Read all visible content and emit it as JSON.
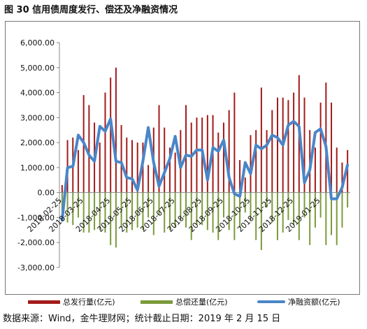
{
  "title": "图 30 信用债周度发行、偿还及净融资情况",
  "source": "数据来源：Wind，金牛理财网；统计截止日期：2019 年 2 月 15 日",
  "legend": {
    "issue": "总发行量(亿元)",
    "repay": "总偿还量(亿元)",
    "net": "净融资额(亿元)"
  },
  "colors": {
    "issue": "#a31a1a",
    "repay": "#7a9a3a",
    "net": "#4a86c8"
  },
  "chart_data": {
    "type": "bar",
    "ylim": [
      -3000,
      6000
    ],
    "yticks": [
      6000,
      5000,
      4000,
      3000,
      2000,
      1000,
      0,
      -1000,
      -2000,
      -3000
    ],
    "ytick_labels": [
      "6,000.00",
      "5,000.00",
      "4,000.00",
      "3,000.00",
      "2,000.00",
      "1,000.00",
      "0.00",
      "-1,000.00",
      "-2,000.00",
      "-3,000.00"
    ],
    "xtick_labels": [
      "2018-02-25",
      "2018-03-25",
      "2018-04-25",
      "2018-05-25",
      "2018-06-25",
      "2018-07-25",
      "2018-08-25",
      "2018-09-25",
      "2018-10-25",
      "2018-11-25",
      "2018-12-25",
      "2019-01-25"
    ],
    "xtick_index": [
      0,
      4,
      9,
      13,
      17,
      21,
      26,
      30,
      35,
      39,
      43,
      48
    ],
    "grid": false,
    "legend_position": "bottom",
    "series": [
      {
        "name": "总发行量(亿元)",
        "type": "bar",
        "values": [
          300,
          2100,
          2200,
          1700,
          3900,
          3500,
          2800,
          2000,
          4000,
          4600,
          5000,
          2700,
          2200,
          2100,
          2000,
          2000,
          1100,
          2600,
          3500,
          2600,
          1800,
          1600,
          2500,
          3500,
          2800,
          3000,
          3000,
          3100,
          3100,
          2400,
          2800,
          3300,
          4000,
          1300,
          600,
          2300,
          2500,
          4200,
          2500,
          3300,
          3800,
          3800,
          3700,
          4000,
          4700,
          3800,
          2500,
          1800,
          3600,
          4400,
          3600,
          1800,
          1200,
          1700
        ]
      },
      {
        "name": "总偿还量(亿元)",
        "type": "bar",
        "values": [
          -1100,
          -1200,
          -1300,
          -1000,
          -1600,
          -1600,
          -1500,
          -1500,
          -1600,
          -2100,
          -2200,
          -1400,
          -1600,
          -1500,
          -1400,
          -1500,
          -1000,
          -1700,
          -900,
          -1600,
          -1500,
          -1400,
          -1100,
          -1400,
          -1900,
          -1300,
          -1300,
          -1500,
          -1600,
          -1900,
          -1000,
          -1500,
          -1900,
          -1400,
          -800,
          -1100,
          -1900,
          -2300,
          -600,
          -1200,
          -1900,
          -1600,
          -1100,
          -1300,
          -1900,
          -1000,
          -2100,
          -1400,
          -1000,
          -2100,
          -1700,
          -2100,
          -1400,
          -600
        ]
      },
      {
        "name": "净融资额(亿元)",
        "type": "line",
        "values": [
          -1100,
          1000,
          1050,
          2300,
          2000,
          1500,
          1250,
          2650,
          2450,
          2950,
          1250,
          1200,
          600,
          550,
          100,
          1250,
          2600,
          1200,
          250,
          800,
          1350,
          2250,
          1000,
          1500,
          1450,
          1700,
          1700,
          500,
          1800,
          1650,
          2100,
          600,
          -50,
          -150,
          1200,
          750,
          1900,
          1750,
          1900,
          2300,
          2200,
          1900,
          2700,
          2850,
          2650,
          400,
          900,
          2400,
          2550,
          1850,
          -250,
          -250,
          200,
          1100
        ]
      }
    ]
  }
}
